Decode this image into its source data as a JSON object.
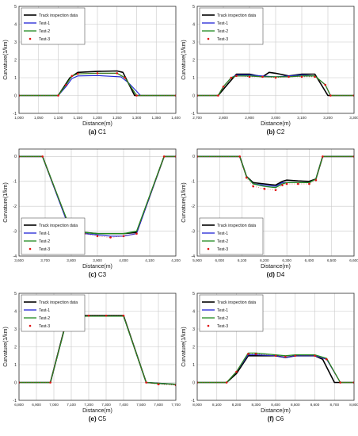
{
  "legend_labels": [
    "Track inspection data",
    "Test-1",
    "Test-2",
    "Test-3"
  ],
  "colors": {
    "track": "#000000",
    "test1": "#1f24d6",
    "test2": "#1f8a1f",
    "test3": "#e01010",
    "grid": "#c8c8c8"
  },
  "chart_data": [
    {
      "type": "line",
      "caption_letter": "(a)",
      "caption_name": "C1",
      "xlabel": "Distance(m)",
      "ylabel": "Curvature(1/km)",
      "xlim": [
        1000,
        1400
      ],
      "ylim": [
        -1,
        5
      ],
      "xticks": [
        1000,
        1050,
        1100,
        1150,
        1200,
        1250,
        1300,
        1350,
        1400
      ],
      "xtick_labels": [
        "1,000",
        "1,050",
        "1,100",
        "1,150",
        "1,200",
        "1,250",
        "1,300",
        "1,350",
        "1,400"
      ],
      "yticks": [
        -1,
        0,
        1,
        2,
        3,
        4,
        5
      ],
      "ytick_labels": [
        "-1",
        "0",
        "1",
        "2",
        "3",
        "4",
        "5"
      ],
      "grid": true,
      "legend_position": "top-left",
      "series": [
        {
          "name": "Track inspection data",
          "x": [
            1000,
            1100,
            1130,
            1150,
            1200,
            1250,
            1265,
            1295,
            1400
          ],
          "y": [
            0,
            0,
            1.0,
            1.3,
            1.35,
            1.38,
            1.3,
            0,
            0
          ]
        },
        {
          "name": "Test-1",
          "x": [
            1000,
            1100,
            1120,
            1135,
            1150,
            1200,
            1260,
            1280,
            1310,
            1400
          ],
          "y": [
            0,
            0,
            0.5,
            0.95,
            1.1,
            1.12,
            1.05,
            0.7,
            0,
            0
          ]
        },
        {
          "name": "Test-2",
          "x": [
            1000,
            1100,
            1120,
            1135,
            1150,
            1200,
            1250,
            1270,
            1300,
            1400
          ],
          "y": [
            0,
            0,
            0.6,
            1.1,
            1.22,
            1.25,
            1.25,
            1.0,
            0,
            0
          ]
        },
        {
          "name": "Test-3",
          "x": [
            1000,
            1100,
            1120,
            1135,
            1150,
            1200,
            1250,
            1270,
            1300,
            1400
          ],
          "y": [
            0,
            0,
            0.6,
            1.1,
            1.22,
            1.25,
            1.25,
            1.0,
            0,
            0
          ]
        }
      ]
    },
    {
      "type": "line",
      "caption_letter": "(b)",
      "caption_name": "C2",
      "xlabel": "Distance(m)",
      "ylabel": "Curvature(1/km)",
      "xlim": [
        2700,
        3300
      ],
      "ylim": [
        -1,
        5
      ],
      "xticks": [
        2700,
        2800,
        2900,
        3000,
        3100,
        3200,
        3300
      ],
      "xtick_labels": [
        "2,700",
        "2,800",
        "2,900",
        "3,000",
        "3,100",
        "3,200",
        "3,300"
      ],
      "yticks": [
        -1,
        0,
        1,
        2,
        3,
        4,
        5
      ],
      "ytick_labels": [
        "-1",
        "0",
        "1",
        "2",
        "3",
        "4",
        "5"
      ],
      "grid": true,
      "legend_position": "top-left",
      "series": [
        {
          "name": "Track inspection data",
          "x": [
            2700,
            2780,
            2820,
            2850,
            2900,
            2950,
            2975,
            3000,
            3050,
            3100,
            3150,
            3175,
            3200,
            3300
          ],
          "y": [
            0,
            0,
            0.7,
            1.2,
            1.2,
            1.05,
            1.3,
            1.25,
            1.1,
            1.2,
            1.2,
            0.6,
            0,
            0
          ]
        },
        {
          "name": "Test-1",
          "x": [
            2700,
            2780,
            2800,
            2830,
            2850,
            2900,
            2950,
            3000,
            3050,
            3100,
            3150,
            3190,
            3210,
            3300
          ],
          "y": [
            0,
            0,
            0.5,
            1.0,
            1.15,
            1.15,
            1.1,
            1.05,
            1.1,
            1.15,
            1.1,
            0.6,
            0,
            0
          ]
        },
        {
          "name": "Test-2",
          "x": [
            2700,
            2780,
            2800,
            2830,
            2850,
            2900,
            2950,
            3000,
            3050,
            3100,
            3150,
            3190,
            3210,
            3300
          ],
          "y": [
            0,
            0,
            0.5,
            1.0,
            1.1,
            1.1,
            1.05,
            1.05,
            1.05,
            1.1,
            1.1,
            0.6,
            0,
            0
          ]
        },
        {
          "name": "Test-3",
          "x": [
            2700,
            2780,
            2800,
            2830,
            2850,
            2900,
            2950,
            3000,
            3050,
            3100,
            3150,
            3190,
            3210,
            3300
          ],
          "y": [
            0,
            0,
            0.5,
            1.0,
            1.1,
            1.05,
            1.05,
            1.0,
            1.05,
            1.05,
            1.05,
            0.6,
            0,
            0
          ]
        }
      ]
    },
    {
      "type": "line",
      "caption_letter": "(c)",
      "caption_name": "C3",
      "xlabel": "Distance(m)",
      "ylabel": "Curvature(1/km)",
      "xlim": [
        3600,
        4200
      ],
      "ylim": [
        -4,
        0.3
      ],
      "xticks": [
        3600,
        3700,
        3800,
        3900,
        4000,
        4100,
        4200
      ],
      "xtick_labels": [
        "3,600",
        "3,700",
        "3,800",
        "3,900",
        "4,000",
        "4,100",
        "4,200"
      ],
      "yticks": [
        -4,
        -3,
        -2,
        -1,
        0
      ],
      "ytick_labels": [
        "-4",
        "-3",
        "-2",
        "-1",
        "0"
      ],
      "grid": true,
      "legend_position": "bottom-left",
      "series": [
        {
          "name": "Track inspection data",
          "x": [
            3600,
            3690,
            3800,
            3850,
            3900,
            3950,
            4000,
            4050,
            4155,
            4200
          ],
          "y": [
            0,
            0,
            -3.05,
            -3.05,
            -3.1,
            -3.1,
            -3.1,
            -3.05,
            0,
            0
          ]
        },
        {
          "name": "Test-1",
          "x": [
            3600,
            3690,
            3800,
            3850,
            3900,
            3950,
            4000,
            4050,
            4155,
            4200
          ],
          "y": [
            0,
            0,
            -3.1,
            -3.1,
            -3.15,
            -3.2,
            -3.2,
            -3.1,
            0,
            0
          ]
        },
        {
          "name": "Test-2",
          "x": [
            3600,
            3690,
            3800,
            3850,
            3900,
            3950,
            4000,
            4050,
            4155,
            4200
          ],
          "y": [
            0,
            0,
            -3.0,
            -3.05,
            -3.1,
            -3.1,
            -3.1,
            -3.0,
            0,
            0
          ]
        },
        {
          "name": "Test-3",
          "x": [
            3600,
            3690,
            3800,
            3850,
            3900,
            3950,
            4000,
            4050,
            4155,
            4200
          ],
          "y": [
            0,
            0,
            -3.05,
            -3.1,
            -3.2,
            -3.25,
            -3.2,
            -3.1,
            0,
            0
          ]
        }
      ]
    },
    {
      "type": "line",
      "caption_letter": "(d)",
      "caption_name": "D4",
      "xlabel": "Distance(m)",
      "ylabel": "Curvature(1/km)",
      "xlim": [
        5900,
        6600
      ],
      "ylim": [
        -4,
        0.3
      ],
      "xticks": [
        5900,
        6000,
        6100,
        6200,
        6300,
        6400,
        6500,
        6600
      ],
      "xtick_labels": [
        "5,900",
        "6,000",
        "6,100",
        "6,200",
        "6,300",
        "6,400",
        "6,500",
        "6,600"
      ],
      "yticks": [
        -4,
        -3,
        -2,
        -1,
        0
      ],
      "ytick_labels": [
        "-4",
        "-3",
        "-2",
        "-1",
        "0"
      ],
      "grid": true,
      "legend_position": "bottom-left",
      "series": [
        {
          "name": "Track inspection data",
          "x": [
            5900,
            6090,
            6120,
            6150,
            6200,
            6250,
            6280,
            6300,
            6350,
            6400,
            6430,
            6460,
            6600
          ],
          "y": [
            0,
            0,
            -0.8,
            -1.05,
            -1.1,
            -1.15,
            -1.0,
            -0.95,
            -0.98,
            -1.0,
            -0.9,
            0,
            0
          ]
        },
        {
          "name": "Test-1",
          "x": [
            5900,
            6090,
            6120,
            6150,
            6200,
            6250,
            6280,
            6300,
            6350,
            6400,
            6430,
            6460,
            6600
          ],
          "y": [
            0,
            0,
            -0.8,
            -1.1,
            -1.15,
            -1.2,
            -1.05,
            -1.05,
            -1.05,
            -1.05,
            -0.9,
            0,
            0
          ]
        },
        {
          "name": "Test-2",
          "x": [
            5900,
            6090,
            6120,
            6150,
            6200,
            6250,
            6280,
            6300,
            6350,
            6400,
            6430,
            6460,
            6600
          ],
          "y": [
            0,
            0,
            -0.8,
            -1.1,
            -1.2,
            -1.25,
            -1.1,
            -1.05,
            -1.05,
            -1.05,
            -0.9,
            0,
            0
          ]
        },
        {
          "name": "Test-3",
          "x": [
            5900,
            6090,
            6120,
            6150,
            6200,
            6250,
            6280,
            6300,
            6350,
            6400,
            6430,
            6460,
            6600
          ],
          "y": [
            0,
            0,
            -0.85,
            -1.2,
            -1.3,
            -1.35,
            -1.15,
            -1.1,
            -1.1,
            -1.1,
            -0.95,
            0,
            0
          ]
        }
      ]
    },
    {
      "type": "line",
      "caption_letter": "(e)",
      "caption_name": "C5",
      "xlabel": "Distance(m)",
      "ylabel": "Curvature(1/km)",
      "xlim": [
        6800,
        7700
      ],
      "ylim": [
        -1,
        5
      ],
      "xticks": [
        6800,
        6900,
        7000,
        7100,
        7200,
        7300,
        7400,
        7500,
        7600,
        7700
      ],
      "xtick_labels": [
        "6,800",
        "6,900",
        "7,000",
        "7,100",
        "7,200",
        "7,300",
        "7,400",
        "7,500",
        "7,600",
        "7,700"
      ],
      "yticks": [
        -1,
        0,
        1,
        2,
        3,
        4,
        5
      ],
      "ytick_labels": [
        "-1",
        "0",
        "1",
        "2",
        "3",
        "4",
        "5"
      ],
      "grid": true,
      "legend_position": "top-left",
      "series": [
        {
          "name": "Track inspection data",
          "x": [
            6800,
            6980,
            7080,
            7200,
            7300,
            7400,
            7530,
            7600,
            7700
          ],
          "y": [
            0,
            0,
            3.75,
            3.75,
            3.75,
            3.75,
            0,
            -0.05,
            -0.1
          ]
        },
        {
          "name": "Test-1",
          "x": [
            6800,
            6980,
            7080,
            7200,
            7300,
            7400,
            7530,
            7600,
            7700
          ],
          "y": [
            0,
            0,
            3.7,
            3.72,
            3.72,
            3.72,
            0,
            -0.05,
            -0.1
          ]
        },
        {
          "name": "Test-2",
          "x": [
            6800,
            6980,
            7080,
            7200,
            7300,
            7400,
            7530,
            7600,
            7700
          ],
          "y": [
            0,
            0,
            3.7,
            3.72,
            3.72,
            3.72,
            0,
            -0.05,
            -0.1
          ]
        },
        {
          "name": "Test-3",
          "x": [
            6800,
            6980,
            7080,
            7200,
            7300,
            7400,
            7530,
            7600,
            7700
          ],
          "y": [
            0,
            0,
            3.75,
            3.75,
            3.75,
            3.75,
            0,
            -0.1,
            -0.15
          ]
        }
      ]
    },
    {
      "type": "line",
      "caption_letter": "(f)",
      "caption_name": "C6",
      "xlabel": "Distance(m)",
      "ylabel": "Curvature(1/km)",
      "xlim": [
        8000,
        8800
      ],
      "ylim": [
        -1,
        5
      ],
      "xticks": [
        8000,
        8100,
        8200,
        8300,
        8400,
        8500,
        8600,
        8700,
        8800
      ],
      "xtick_labels": [
        "8,000",
        "8,100",
        "8,200",
        "8,300",
        "8,400",
        "8,500",
        "8,600",
        "8,700",
        "8,800"
      ],
      "yticks": [
        -1,
        0,
        1,
        2,
        3,
        4,
        5
      ],
      "ytick_labels": [
        "-1",
        "0",
        "1",
        "2",
        "3",
        "4",
        "5"
      ],
      "grid": true,
      "legend_position": "top-left",
      "series": [
        {
          "name": "Track inspection data",
          "x": [
            8000,
            8150,
            8200,
            8260,
            8300,
            8400,
            8450,
            8500,
            8600,
            8640,
            8700,
            8800
          ],
          "y": [
            0,
            0,
            0.5,
            1.5,
            1.5,
            1.5,
            1.4,
            1.5,
            1.5,
            1.3,
            0,
            0
          ]
        },
        {
          "name": "Test-1",
          "x": [
            8000,
            8150,
            8200,
            8260,
            8300,
            8400,
            8450,
            8500,
            8600,
            8660,
            8730,
            8800
          ],
          "y": [
            0,
            0,
            0.6,
            1.55,
            1.55,
            1.5,
            1.4,
            1.5,
            1.5,
            1.3,
            0,
            0
          ]
        },
        {
          "name": "Test-2",
          "x": [
            8000,
            8150,
            8200,
            8260,
            8300,
            8400,
            8450,
            8500,
            8600,
            8660,
            8730,
            8800
          ],
          "y": [
            0,
            0,
            0.6,
            1.65,
            1.65,
            1.55,
            1.5,
            1.55,
            1.55,
            1.35,
            0,
            0
          ]
        },
        {
          "name": "Test-3",
          "x": [
            8000,
            8150,
            8200,
            8260,
            8300,
            8400,
            8450,
            8500,
            8600,
            8660,
            8730,
            8800
          ],
          "y": [
            0,
            0,
            0.6,
            1.6,
            1.6,
            1.5,
            1.45,
            1.5,
            1.5,
            1.3,
            0,
            0
          ]
        }
      ]
    }
  ]
}
